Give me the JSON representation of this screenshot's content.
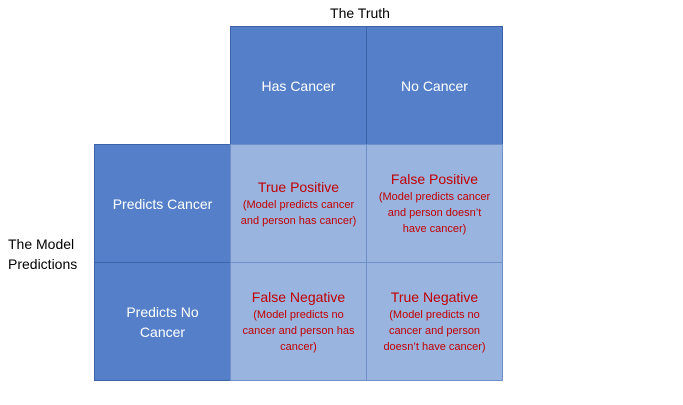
{
  "truth_label": "The Truth",
  "model_label": "The Model Predictions",
  "columns": [
    "Has Cancer",
    "No Cancer"
  ],
  "rows": [
    "Predicts Cancer",
    "Predicts No Cancer"
  ],
  "cells": [
    [
      {
        "title": "True Positive",
        "desc": "(Model predicts cancer and person has cancer)"
      },
      {
        "title": "False Positive",
        "desc": "(Model predicts cancer and person doesn’t have cancer)"
      }
    ],
    [
      {
        "title": "False Negative",
        "desc": "(Model predicts no cancer and person has cancer)"
      },
      {
        "title": "True Negative",
        "desc": "(Model predicts no cancer and person doesn’t have cancer)"
      }
    ]
  ],
  "colors": {
    "header_fill": "#5580c9",
    "cell_fill": "#9ab4e0",
    "cell_text": "#c00000",
    "header_text": "#ffffff"
  }
}
